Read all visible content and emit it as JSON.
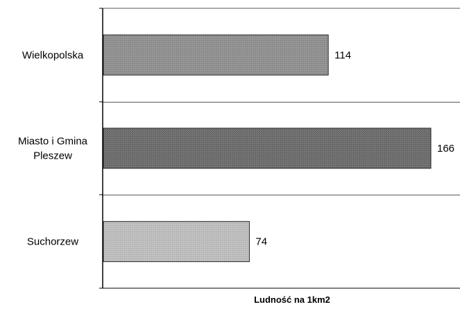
{
  "chart_data": {
    "type": "bar",
    "orientation": "horizontal",
    "categories": [
      [
        "Wielkopolska"
      ],
      [
        "Miasto i Gmina",
        "Pleszew"
      ],
      [
        "Suchorzew"
      ]
    ],
    "values": [
      114,
      166,
      74
    ],
    "value_labels": [
      "114",
      "166",
      "74"
    ],
    "xlabel": "Ludność na 1km2",
    "xlim": [
      0,
      170
    ],
    "grid": "horizontal separators between categories",
    "colors": {
      "bars": [
        "#8f8f8f",
        "#6b6b6b",
        "#bdbdbd"
      ],
      "axis": "#000000",
      "gridline": "#555555"
    }
  }
}
